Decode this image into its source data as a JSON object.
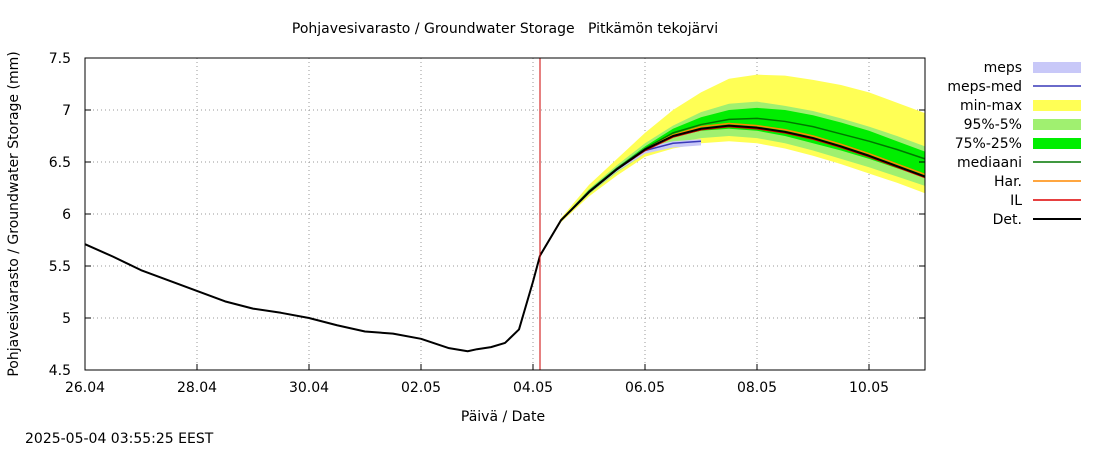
{
  "chart_data": {
    "type": "line",
    "title": "Pohjavesivarasto / Groundwater Storage   Pitkämön tekojärvi",
    "xlabel": "Päivä / Date",
    "ylabel": "Pohjavesivarasto / Groundwater Storage (mm)",
    "xlim": [
      "2025-04-26",
      "2025-05-11"
    ],
    "ylim": [
      4.5,
      7.5
    ],
    "x_ticks": [
      "26.04",
      "28.04",
      "30.04",
      "02.05",
      "04.05",
      "06.05",
      "08.05",
      "10.05"
    ],
    "y_ticks": [
      "4.5",
      "5",
      "5.5",
      "6",
      "6.5",
      "7",
      "7.5"
    ],
    "grid": true,
    "legend_position": "right",
    "forecast_start": "2025-05-04T03:00",
    "colors": {
      "meps": "#c8c8f8",
      "meps_med": "#3838b8",
      "minmax": "#ffff55",
      "p95_5": "#a0f070",
      "p75_25": "#00ee00",
      "mediaani": "#007700",
      "har": "#ff8800",
      "il": "#dd0000",
      "det": "#000000",
      "forecast_line": "#cc0000",
      "grid": "#999999"
    },
    "legend": [
      {
        "key": "meps",
        "label": "meps",
        "kind": "band"
      },
      {
        "key": "meps_med",
        "label": "meps-med",
        "kind": "line"
      },
      {
        "key": "minmax",
        "label": "min-max",
        "kind": "band"
      },
      {
        "key": "p95_5",
        "label": "95%-5%",
        "kind": "band"
      },
      {
        "key": "p75_25",
        "label": "75%-25%",
        "kind": "band"
      },
      {
        "key": "mediaani",
        "label": "mediaani",
        "kind": "line"
      },
      {
        "key": "har",
        "label": "Har.",
        "kind": "line"
      },
      {
        "key": "il",
        "label": "IL",
        "kind": "line"
      },
      {
        "key": "det",
        "label": "Det.",
        "kind": "line"
      }
    ],
    "observed": {
      "x": [
        "2025-04-26T00:00",
        "2025-04-26T12:00",
        "2025-04-27T00:00",
        "2025-04-27T12:00",
        "2025-04-28T00:00",
        "2025-04-28T12:00",
        "2025-04-29T00:00",
        "2025-04-29T12:00",
        "2025-04-30T00:00",
        "2025-04-30T12:00",
        "2025-05-01T00:00",
        "2025-05-01T12:00",
        "2025-05-02T00:00",
        "2025-05-02T08:00",
        "2025-05-02T12:00",
        "2025-05-02T20:00",
        "2025-05-03T00:00",
        "2025-05-03T06:00",
        "2025-05-03T12:00",
        "2025-05-03T18:00",
        "2025-05-04T00:00",
        "2025-05-04T03:00"
      ],
      "y": [
        5.71,
        5.59,
        5.46,
        5.36,
        5.26,
        5.16,
        5.09,
        5.05,
        5.0,
        4.93,
        4.87,
        4.85,
        4.8,
        4.74,
        4.71,
        4.68,
        4.7,
        4.72,
        4.76,
        4.89,
        5.35,
        5.6
      ]
    },
    "forecast_x": [
      "2025-05-04T03:00",
      "2025-05-04T12:00",
      "2025-05-05T00:00",
      "2025-05-05T12:00",
      "2025-05-06T00:00",
      "2025-05-06T12:00",
      "2025-05-07T00:00",
      "2025-05-07T12:00",
      "2025-05-08T00:00",
      "2025-05-08T12:00",
      "2025-05-09T00:00",
      "2025-05-09T12:00",
      "2025-05-10T00:00",
      "2025-05-10T12:00",
      "2025-05-11T00:00"
    ],
    "bands": {
      "minmax": {
        "low": [
          5.6,
          5.92,
          6.17,
          6.37,
          6.55,
          6.63,
          6.68,
          6.7,
          6.68,
          6.63,
          6.56,
          6.48,
          6.39,
          6.3,
          6.2
        ],
        "high": [
          5.6,
          5.96,
          6.28,
          6.53,
          6.78,
          7.0,
          7.17,
          7.3,
          7.34,
          7.33,
          7.29,
          7.24,
          7.17,
          7.07,
          6.97
        ]
      },
      "p95_5": {
        "low": [
          5.6,
          5.93,
          6.19,
          6.4,
          6.58,
          6.68,
          6.73,
          6.75,
          6.73,
          6.68,
          6.61,
          6.53,
          6.45,
          6.36,
          6.27
        ],
        "high": [
          5.6,
          5.95,
          6.24,
          6.47,
          6.68,
          6.85,
          6.98,
          7.06,
          7.08,
          7.04,
          6.99,
          6.92,
          6.84,
          6.75,
          6.65
        ]
      },
      "p75_25": {
        "low": [
          5.6,
          5.94,
          6.21,
          6.43,
          6.62,
          6.74,
          6.8,
          6.82,
          6.8,
          6.75,
          6.68,
          6.61,
          6.53,
          6.44,
          6.35
        ],
        "high": [
          5.6,
          5.95,
          6.23,
          6.45,
          6.65,
          6.82,
          6.93,
          7.0,
          7.02,
          7.0,
          6.95,
          6.88,
          6.8,
          6.7,
          6.6
        ]
      },
      "meps": {
        "low": [
          5.6,
          5.93,
          6.2,
          6.41,
          6.58,
          6.64,
          6.66
        ],
        "high": [
          5.6,
          5.95,
          6.23,
          6.45,
          6.64,
          6.7,
          6.72
        ]
      }
    },
    "series": [
      {
        "name": "meps-med",
        "key": "meps_med",
        "values": [
          5.6,
          5.94,
          6.21,
          6.43,
          6.61,
          6.68,
          6.7
        ]
      },
      {
        "name": "mediaani",
        "key": "mediaani",
        "values": [
          5.6,
          5.94,
          6.22,
          6.44,
          6.63,
          6.78,
          6.86,
          6.91,
          6.92,
          6.89,
          6.84,
          6.77,
          6.7,
          6.62,
          6.53
        ]
      },
      {
        "name": "Har.",
        "key": "har",
        "values": [
          5.6,
          5.94,
          6.21,
          6.43,
          6.62,
          6.76,
          6.84,
          6.87,
          6.85,
          6.81,
          6.75,
          6.67,
          6.58,
          6.48,
          6.38
        ]
      },
      {
        "name": "IL",
        "key": "il",
        "values": [
          5.6,
          5.94,
          6.21,
          6.43,
          6.61,
          6.74,
          6.81,
          6.84,
          6.82,
          6.78,
          6.72,
          6.64,
          6.55,
          6.45,
          6.35
        ]
      },
      {
        "name": "Det.",
        "key": "det",
        "values": [
          5.6,
          5.94,
          6.21,
          6.43,
          6.62,
          6.75,
          6.82,
          6.85,
          6.83,
          6.79,
          6.73,
          6.65,
          6.56,
          6.46,
          6.36
        ]
      }
    ]
  },
  "footer": {
    "timestamp": "2025-05-04 03:55:25 EEST"
  }
}
